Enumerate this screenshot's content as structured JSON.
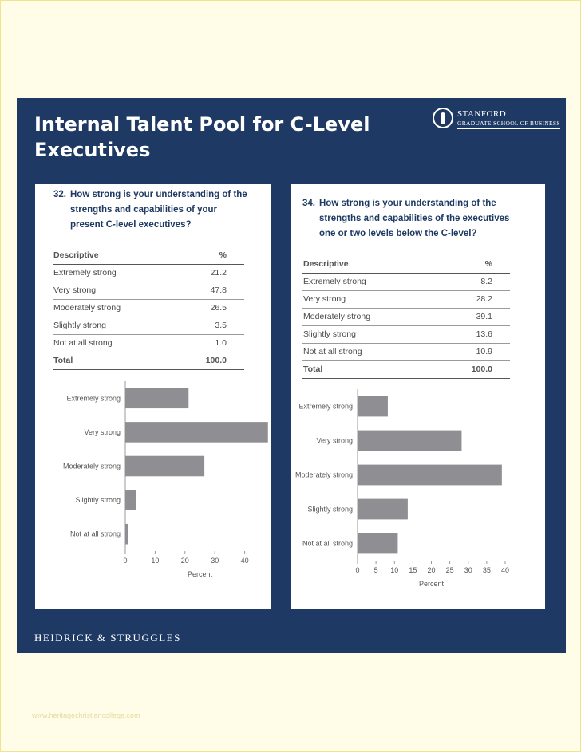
{
  "slide": {
    "title": "Internal Talent Pool for C-Level Executives",
    "logo": {
      "name": "STANFORD",
      "subtitle": "GRADUATE SCHOOL OF BUSINESS"
    },
    "footer": "HEIDRICK & STRUGGLES"
  },
  "watermark": "www.heritagechristiancollege.com",
  "colors": {
    "slide_bg": "#1e3a64",
    "bar": "#8e8e93",
    "question_text": "#1e3a64",
    "page_bg": "#fffde7"
  },
  "panels": [
    {
      "question_num": "32.",
      "question": "How strong is your understanding of the strengths and capabilities of your present C-level executives?",
      "table": {
        "header": {
          "label": "Descriptive",
          "value": "%"
        },
        "rows": [
          {
            "label": "Extremely strong",
            "value": "21.2"
          },
          {
            "label": "Very strong",
            "value": "47.8"
          },
          {
            "label": "Moderately strong",
            "value": "26.5"
          },
          {
            "label": "Slightly strong",
            "value": "3.5"
          },
          {
            "label": "Not at all strong",
            "value": "1.0"
          }
        ],
        "total": {
          "label": "Total",
          "value": "100.0"
        }
      }
    },
    {
      "question_num": "34.",
      "question": "How strong is your understanding of the strengths and capabilities of the executives one or two levels below the C-level?",
      "table": {
        "header": {
          "label": "Descriptive",
          "value": "%"
        },
        "rows": [
          {
            "label": "Extremely strong",
            "value": "8.2"
          },
          {
            "label": "Very strong",
            "value": "28.2"
          },
          {
            "label": "Moderately strong",
            "value": "39.1"
          },
          {
            "label": "Slightly strong",
            "value": "13.6"
          },
          {
            "label": "Not at all strong",
            "value": "10.9"
          }
        ],
        "total": {
          "label": "Total",
          "value": "100.0"
        }
      }
    }
  ],
  "chart_data": [
    {
      "type": "bar",
      "orientation": "horizontal",
      "categories": [
        "Extremely strong",
        "Very strong",
        "Moderately strong",
        "Slightly strong",
        "Not at all strong"
      ],
      "values": [
        21.2,
        47.8,
        26.5,
        3.5,
        1.0
      ],
      "xlabel": "Percent",
      "xlim": [
        0,
        50
      ],
      "xticks": [
        0,
        10,
        20,
        30,
        40,
        50
      ],
      "grid": false
    },
    {
      "type": "bar",
      "orientation": "horizontal",
      "categories": [
        "Extremely strong",
        "Very strong",
        "Moderately strong",
        "Slightly strong",
        "Not at all strong"
      ],
      "values": [
        8.2,
        28.2,
        39.1,
        13.6,
        10.9
      ],
      "xlabel": "Percent",
      "xlim": [
        0,
        40
      ],
      "xticks": [
        0,
        5,
        10,
        15,
        20,
        25,
        30,
        35,
        40
      ],
      "grid": false
    }
  ]
}
